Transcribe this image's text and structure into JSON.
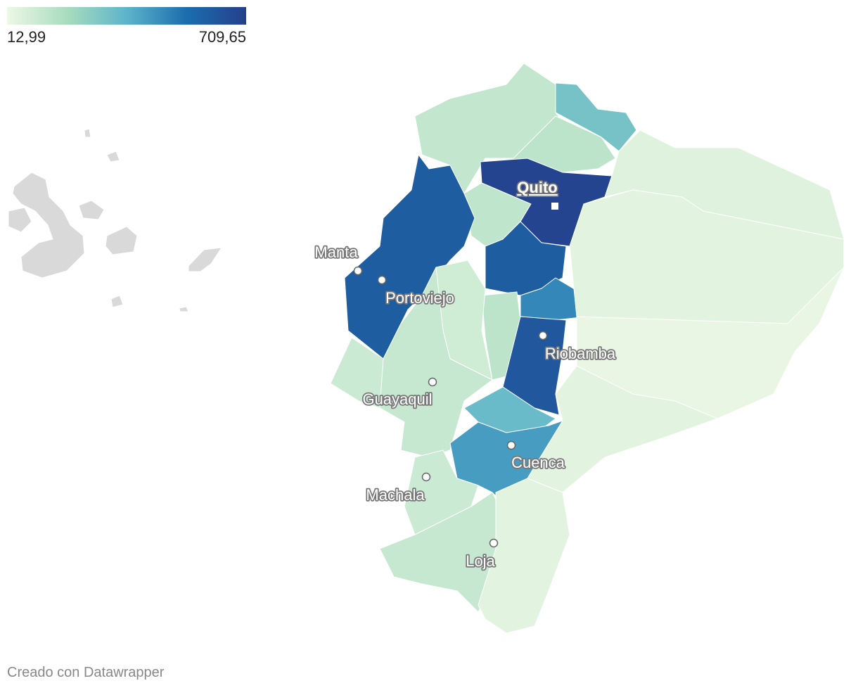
{
  "legend": {
    "min": {
      "value": 12.99,
      "label": "12,99"
    },
    "max": {
      "value": 709.65,
      "label": "709,65"
    }
  },
  "regions": [
    {
      "value": 120
    },
    {
      "value": 300
    },
    {
      "value": 140
    },
    {
      "value": 690
    },
    {
      "value": 130
    },
    {
      "value": 600
    },
    {
      "value": 600
    },
    {
      "value": 470
    },
    {
      "value": 140
    },
    {
      "value": 90
    },
    {
      "value": 620
    },
    {
      "value": 110
    },
    {
      "value": 100
    },
    {
      "value": 330
    },
    {
      "value": 420
    },
    {
      "value": 100
    },
    {
      "value": 110
    },
    {
      "value": 40
    },
    {
      "value": 40
    },
    {
      "value": 25
    },
    {
      "value": 40
    },
    {
      "value": 50
    }
  ],
  "cities": [
    {
      "label": "Quito",
      "capital": true
    },
    {
      "label": "Manta",
      "capital": false
    },
    {
      "label": "Portoviejo",
      "capital": false
    },
    {
      "label": "Guayaquil",
      "capital": false
    },
    {
      "label": "Riobamba",
      "capital": false
    },
    {
      "label": "Cuenca",
      "capital": false
    },
    {
      "label": "Machala",
      "capital": false
    },
    {
      "label": "Loja",
      "capital": false
    }
  ],
  "footer": "Creado con Datawrapper"
}
